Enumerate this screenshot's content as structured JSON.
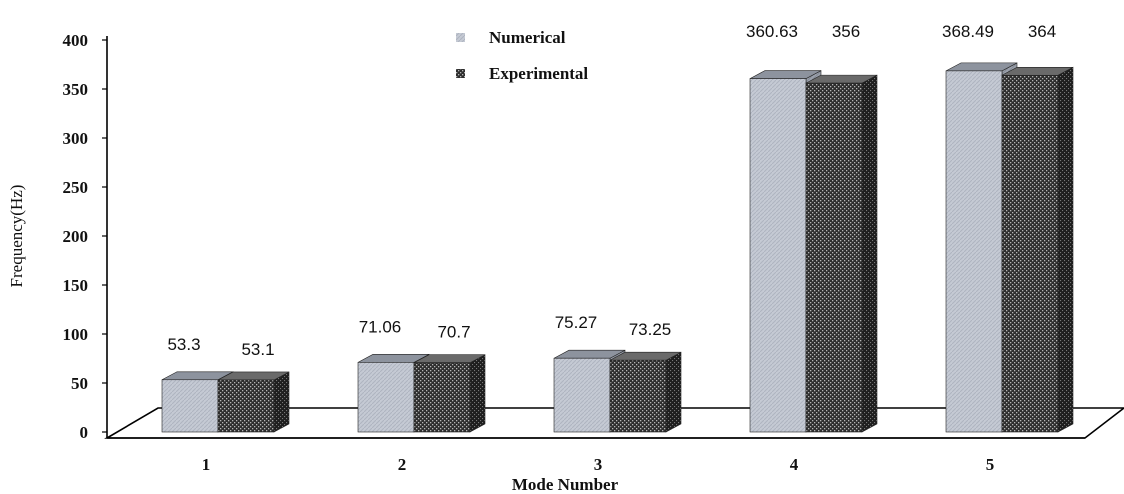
{
  "chart_data": {
    "type": "bar",
    "style": "3d-clustered",
    "categories": [
      "1",
      "2",
      "3",
      "4",
      "5"
    ],
    "series": [
      {
        "name": "Numerical",
        "values": [
          53.3,
          71.06,
          75.27,
          360.63,
          368.49
        ],
        "labels": [
          "53.3",
          "71.06",
          "75.27",
          "360.63",
          "368.49"
        ],
        "color": "#c3c8d2"
      },
      {
        "name": "Experimental",
        "values": [
          53.1,
          70.7,
          73.25,
          356,
          364
        ],
        "labels": [
          "53.1",
          "70.7",
          "73.25",
          "356",
          "364"
        ],
        "color": "#3c3c3c"
      }
    ],
    "xlabel": "Mode Number",
    "ylabel": "Frequency(Hz)",
    "ylim": [
      0,
      400
    ],
    "yticks": [
      "0",
      "50",
      "100",
      "150",
      "200",
      "250",
      "300",
      "350",
      "400"
    ],
    "grid": false,
    "legend_position": "top-center"
  }
}
